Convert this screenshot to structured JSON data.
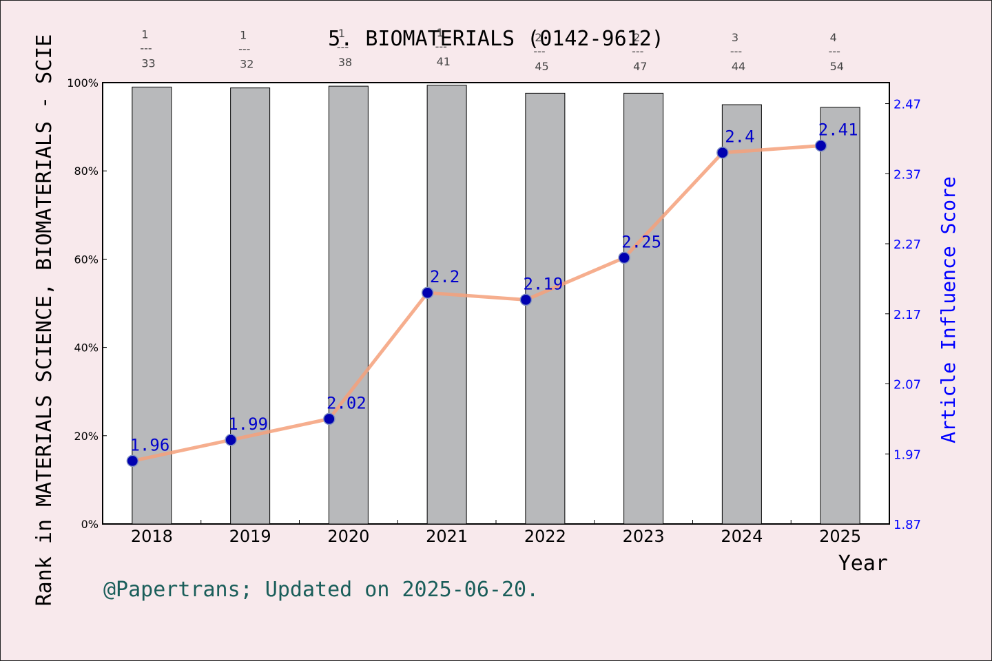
{
  "chart_data": {
    "type": "bar",
    "title": "5. BIOMATERIALS (0142-9612)",
    "xlabel": "Year",
    "ylabel": "Rank in MATERIALS SCIENCE, BIOMATERIALS - SCIE",
    "y2label": "Article Influence Score",
    "footer": "@Papertrans; Updated on 2025-06-20.",
    "categories": [
      "2018",
      "2019",
      "2020",
      "2021",
      "2022",
      "2023",
      "2024",
      "2025"
    ],
    "ylim": [
      0,
      100
    ],
    "y_ticks": [
      "0%",
      "20%",
      "40%",
      "60%",
      "80%",
      "100%"
    ],
    "y2lim": [
      1.87,
      2.5
    ],
    "y2_ticks": [
      "1.87",
      "1.97",
      "2.07",
      "2.17",
      "2.27",
      "2.37",
      "2.47"
    ],
    "series": [
      {
        "type": "bar",
        "values": [
          99.0,
          98.8,
          99.2,
          99.4,
          97.6,
          97.6,
          95.0,
          94.4
        ],
        "rank_labels": [
          {
            "rank": "1",
            "total": "33"
          },
          {
            "rank": "1",
            "total": "32"
          },
          {
            "rank": "1",
            "total": "38"
          },
          {
            "rank": "1",
            "total": "41"
          },
          {
            "rank": "2",
            "total": "45"
          },
          {
            "rank": "2",
            "total": "47"
          },
          {
            "rank": "3",
            "total": "44"
          },
          {
            "rank": "4",
            "total": "54"
          }
        ]
      },
      {
        "type": "line",
        "axis": "right",
        "values": [
          1.96,
          1.99,
          2.02,
          2.2,
          2.19,
          2.25,
          2.4,
          2.41
        ],
        "labels": [
          "1.96",
          "1.99",
          "2.02",
          "2.2",
          "2.19",
          "2.25",
          "2.4",
          "2.41"
        ]
      }
    ],
    "colors": {
      "background": "#f8e9ec",
      "plot_background": "#ffffff",
      "bar_fill": "#b8b9bb",
      "line": "#f4a07a",
      "marker": "#0000b0",
      "right_axis": "#0000ff",
      "footer_text": "#1a5e5a"
    },
    "grid": false,
    "legend": "none"
  }
}
